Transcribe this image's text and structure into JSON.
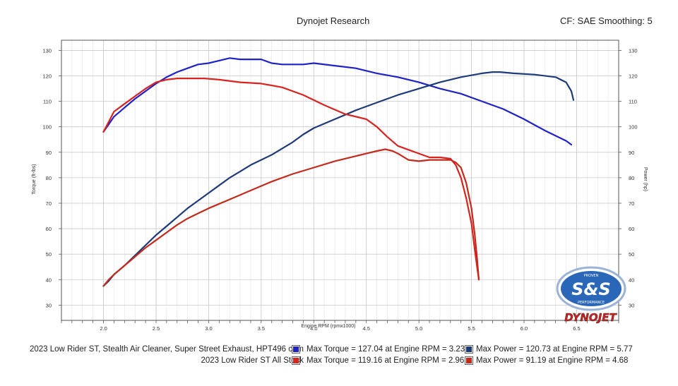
{
  "header": {
    "title": "Dynojet Research",
    "cf_info": "CF: SAE Smoothing: 5"
  },
  "logo": {
    "badge_text": "S&S",
    "badge_top": "PROVEN",
    "badge_bottom": "PERFORMANCE",
    "brand": "DYNOJET"
  },
  "legend": [
    {
      "name": "2023 Low Rider ST, Stealth Air Cleaner, Super Street Exhaust, HPT496 cam",
      "torque_text": "Max Torque = 127.04 at Engine RPM = 3.23",
      "power_text": "Max Power = 120.73 at Engine RPM = 5.77",
      "torque_color": "#1f22c9",
      "power_color": "#1e3a78"
    },
    {
      "name": "2023 Low Rider ST All Stock",
      "torque_text": "Max Torque = 119.16 at Engine RPM = 2.96",
      "power_text": "Max Power = 91.19 at Engine RPM = 4.68",
      "torque_color": "#d8231f",
      "power_color": "#c42a1c"
    }
  ],
  "chart_data": {
    "type": "line",
    "title": "Dynojet Research",
    "xlabel": "Engine RPM (rpmx1000)",
    "ylabel_left": "Torque (ft-lbs)",
    "ylabel_right": "Power (hp)",
    "xlim": [
      1.6,
      6.9
    ],
    "ylim": [
      24,
      134
    ],
    "x_ticks": [
      "2.0",
      "2.5",
      "3.0",
      "3.5",
      "4.0",
      "4.5",
      "5.0",
      "5.5",
      "6.0",
      "6.5"
    ],
    "y_ticks": [
      "30",
      "40",
      "50",
      "60",
      "70",
      "80",
      "90",
      "100",
      "110",
      "120",
      "130"
    ],
    "grid": true,
    "series": [
      {
        "name": "2023 Low Rider ST, Stealth Air Cleaner, Super Street Exhaust, HPT496 cam",
        "quantity": "Torque",
        "color": "#1f22c9",
        "x": [
          2.0,
          2.05,
          2.1,
          2.2,
          2.3,
          2.4,
          2.5,
          2.6,
          2.7,
          2.8,
          2.9,
          3.0,
          3.1,
          3.2,
          3.3,
          3.4,
          3.5,
          3.6,
          3.7,
          3.8,
          3.9,
          4.0,
          4.2,
          4.4,
          4.6,
          4.8,
          5.0,
          5.2,
          5.4,
          5.6,
          5.8,
          6.0,
          6.2,
          6.4,
          6.45
        ],
        "y": [
          98,
          101,
          104,
          107.5,
          111,
          114,
          117,
          119.5,
          121.5,
          123,
          124.5,
          125,
          126,
          127,
          126.5,
          126.5,
          126.5,
          125,
          124.5,
          124.5,
          124.5,
          125,
          124,
          123,
          121,
          119.5,
          117.5,
          115,
          113,
          110,
          107,
          103,
          98.5,
          94.5,
          93
        ]
      },
      {
        "name": "2023 Low Rider ST, Stealth Air Cleaner, Super Street Exhaust, HPT496 cam",
        "quantity": "Power",
        "color": "#1e3a78",
        "x": [
          2.0,
          2.05,
          2.1,
          2.2,
          2.3,
          2.4,
          2.5,
          2.6,
          2.7,
          2.8,
          2.9,
          3.0,
          3.1,
          3.2,
          3.3,
          3.4,
          3.5,
          3.6,
          3.7,
          3.8,
          3.9,
          4.0,
          4.2,
          4.4,
          4.6,
          4.8,
          5.0,
          5.2,
          5.4,
          5.6,
          5.7,
          5.77,
          5.9,
          6.1,
          6.3,
          6.4,
          6.45,
          6.47
        ],
        "y": [
          37.5,
          39.5,
          42,
          45.5,
          49.5,
          53.5,
          57.5,
          61,
          64.5,
          68,
          71,
          74,
          77,
          80,
          82.5,
          85,
          87,
          89,
          91.5,
          94,
          97,
          99.5,
          103,
          106.5,
          109.5,
          112.5,
          115,
          117.5,
          119.5,
          121,
          121.5,
          121.5,
          121,
          120.5,
          119.5,
          117.5,
          114,
          110.5
        ]
      },
      {
        "name": "2023 Low Rider ST All Stock",
        "quantity": "Torque",
        "color": "#d8231f",
        "x": [
          2.0,
          2.05,
          2.1,
          2.2,
          2.3,
          2.4,
          2.5,
          2.6,
          2.7,
          2.8,
          2.9,
          2.96,
          3.1,
          3.3,
          3.5,
          3.7,
          3.9,
          4.1,
          4.3,
          4.5,
          4.6,
          4.7,
          4.8,
          4.9,
          5.0,
          5.1,
          5.2,
          5.3,
          5.35,
          5.4,
          5.45,
          5.5,
          5.53,
          5.55,
          5.57
        ],
        "y": [
          98,
          102,
          106,
          109,
          112,
          115,
          117.5,
          118.5,
          119,
          119,
          119,
          119,
          118.5,
          117.5,
          117,
          115.5,
          112.5,
          108.5,
          105,
          103,
          100,
          96,
          92.5,
          91,
          89.5,
          88,
          88,
          87.5,
          85,
          80,
          72,
          62,
          52,
          46,
          40
        ]
      },
      {
        "name": "2023 Low Rider ST All Stock",
        "quantity": "Power",
        "color": "#c42a1c",
        "x": [
          2.0,
          2.05,
          2.1,
          2.2,
          2.3,
          2.4,
          2.5,
          2.6,
          2.7,
          2.8,
          2.9,
          3.0,
          3.2,
          3.4,
          3.6,
          3.8,
          4.0,
          4.2,
          4.4,
          4.5,
          4.6,
          4.68,
          4.75,
          4.8,
          4.9,
          5.0,
          5.1,
          5.2,
          5.3,
          5.35,
          5.4,
          5.45,
          5.5,
          5.53,
          5.55,
          5.57
        ],
        "y": [
          37.5,
          40,
          42,
          45.5,
          49,
          52.5,
          55.5,
          58.5,
          61.5,
          64,
          66,
          68,
          71.5,
          75,
          78.5,
          81.5,
          84,
          86.5,
          88.5,
          89.5,
          90.5,
          91.2,
          90.5,
          89.5,
          87,
          86.5,
          87,
          87,
          87,
          86,
          84,
          78,
          68,
          58,
          50,
          40
        ]
      }
    ]
  }
}
